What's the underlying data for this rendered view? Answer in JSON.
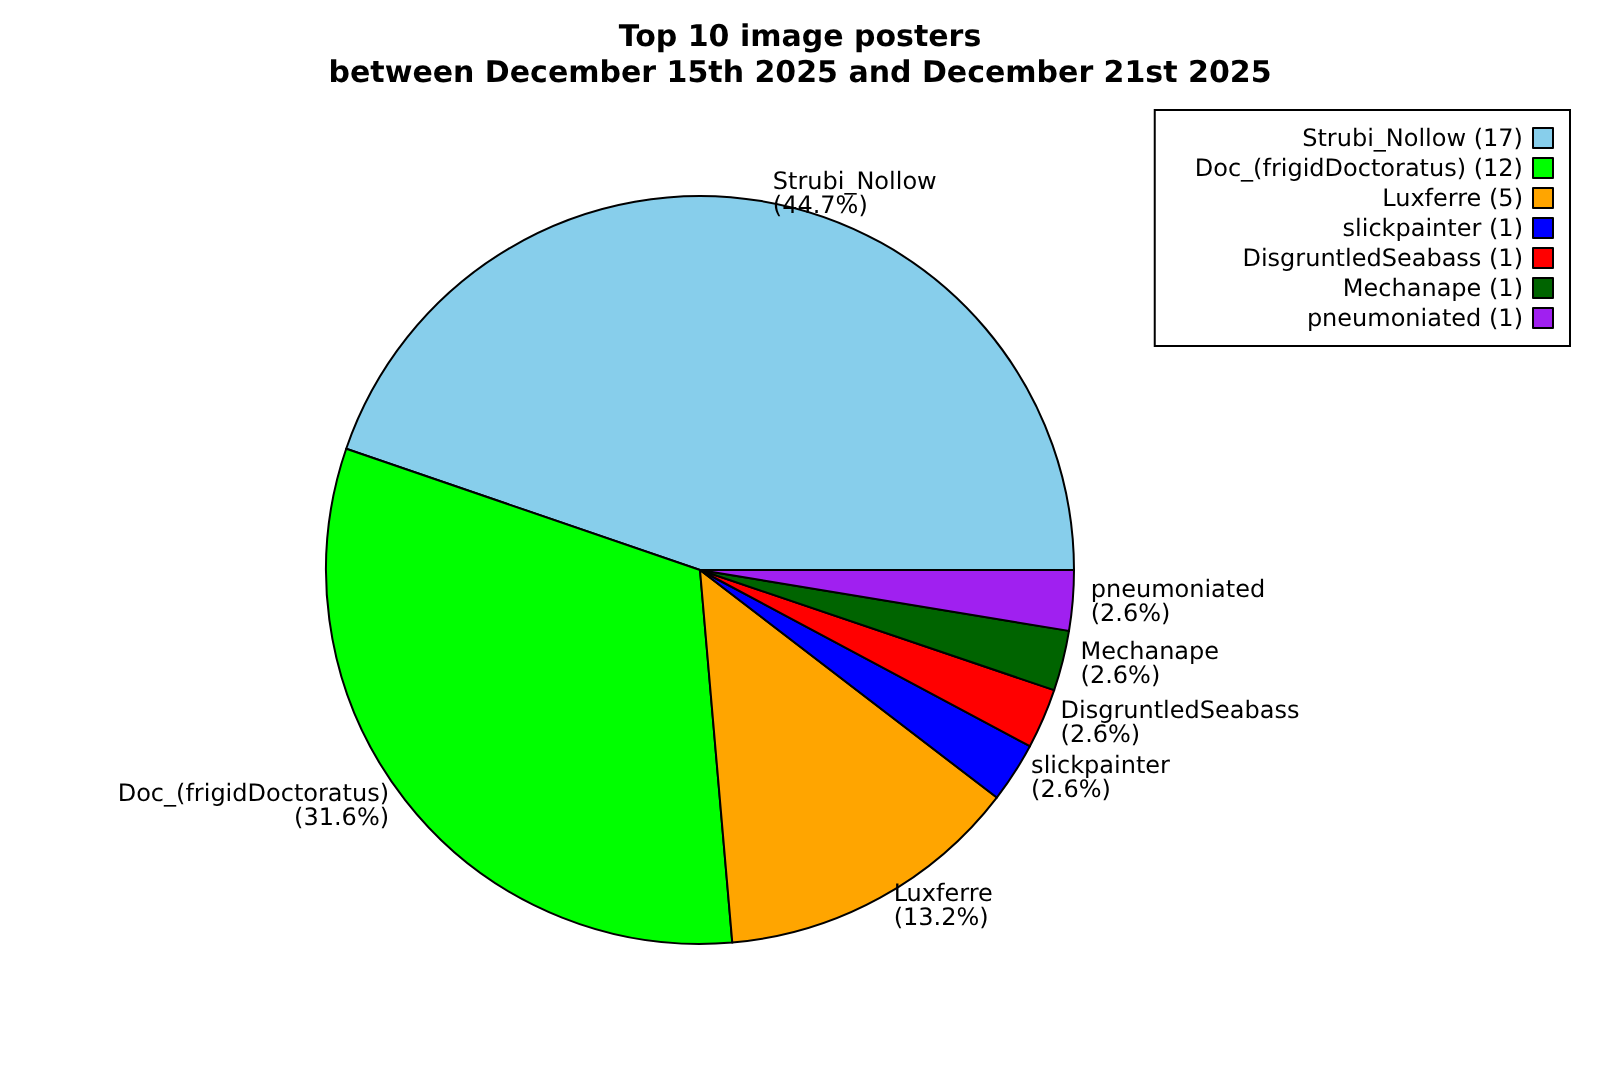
{
  "chart_data": {
    "type": "pie",
    "title": "Top 10 image posters\nbetween December 15th 2025 and December 21st 2025",
    "categories": [
      "Strubi_Nollow",
      "Doc_(frigidDoctoratus)",
      "Luxferre",
      "slickpainter",
      "DisgruntledSeabass",
      "Mechanape",
      "pneumoniated"
    ],
    "values": [
      44.7,
      31.6,
      13.2,
      2.6,
      2.6,
      2.6,
      2.6
    ],
    "annotations": [
      "(17)",
      "(12)",
      "(5)",
      "(1)",
      "(1)",
      "(1)",
      "(1)"
    ],
    "value_labels": [
      "(44.7%)",
      "(31.6%)",
      "(13.2%)",
      "(2.6%)",
      "(2.6%)",
      "(2.6%)",
      "(2.6%)"
    ],
    "colors": [
      "#87ceeb",
      "#00ff00",
      "#ffa500",
      "#0000ff",
      "#ff0000",
      "#006400",
      "#a020f0"
    ],
    "legend": "top right"
  }
}
